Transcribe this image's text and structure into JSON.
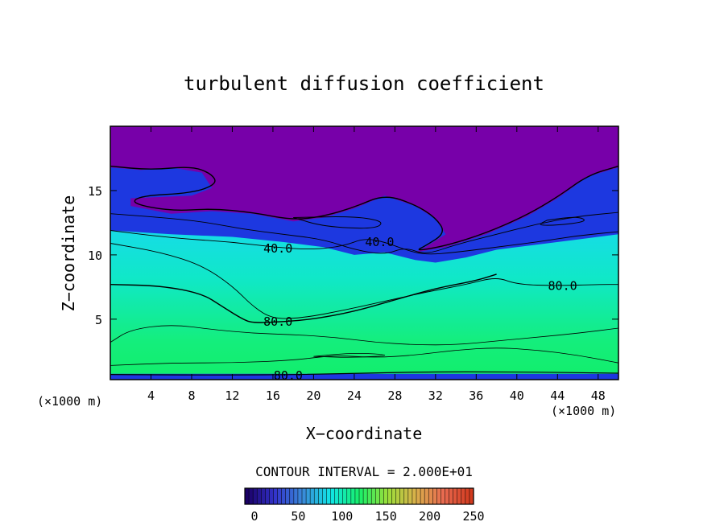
{
  "chart_data": {
    "type": "heatmap",
    "title": "turbulent diffusion coefficient",
    "xlabel": "X−coordinate",
    "ylabel": "Z−coordinate",
    "x_unit_left": "(×1000 m)",
    "x_unit_right": "(×1000 m)",
    "xlim": [
      0,
      50
    ],
    "ylim": [
      0.3,
      20
    ],
    "x_ticks": [
      4,
      8,
      12,
      16,
      20,
      24,
      28,
      32,
      36,
      40,
      44,
      48
    ],
    "y_ticks": [
      5,
      10,
      15
    ],
    "contour_interval_text": "CONTOUR INTERVAL = 2.000E+01",
    "contour_labels": [
      {
        "text": "40.0",
        "x": 16.5,
        "z": 10.5
      },
      {
        "text": "40.0",
        "x": 26.5,
        "z": 11.0
      },
      {
        "text": "80.0",
        "x": 16.5,
        "z": 4.8
      },
      {
        "text": "80.0",
        "x": 44.5,
        "z": 7.6
      },
      {
        "text": "80.0",
        "x": 17.5,
        "z": 0.6
      }
    ],
    "colorbar": {
      "min": 0,
      "max": 250,
      "tick_labels": [
        "0",
        "50",
        "100",
        "150",
        "200",
        "250"
      ],
      "colors": [
        "#1a0066",
        "#3333cc",
        "#3a8ad9",
        "#10e6e6",
        "#18ef6a",
        "#9adf3a",
        "#d8b04a",
        "#e86a50",
        "#d23a1e"
      ]
    },
    "field_colors": {
      "top": "#7700a9",
      "upper": "#1d38e0",
      "middle": "#3fa0e8",
      "lower": "#12e4ea",
      "bottom": "#12ee6a"
    }
  }
}
